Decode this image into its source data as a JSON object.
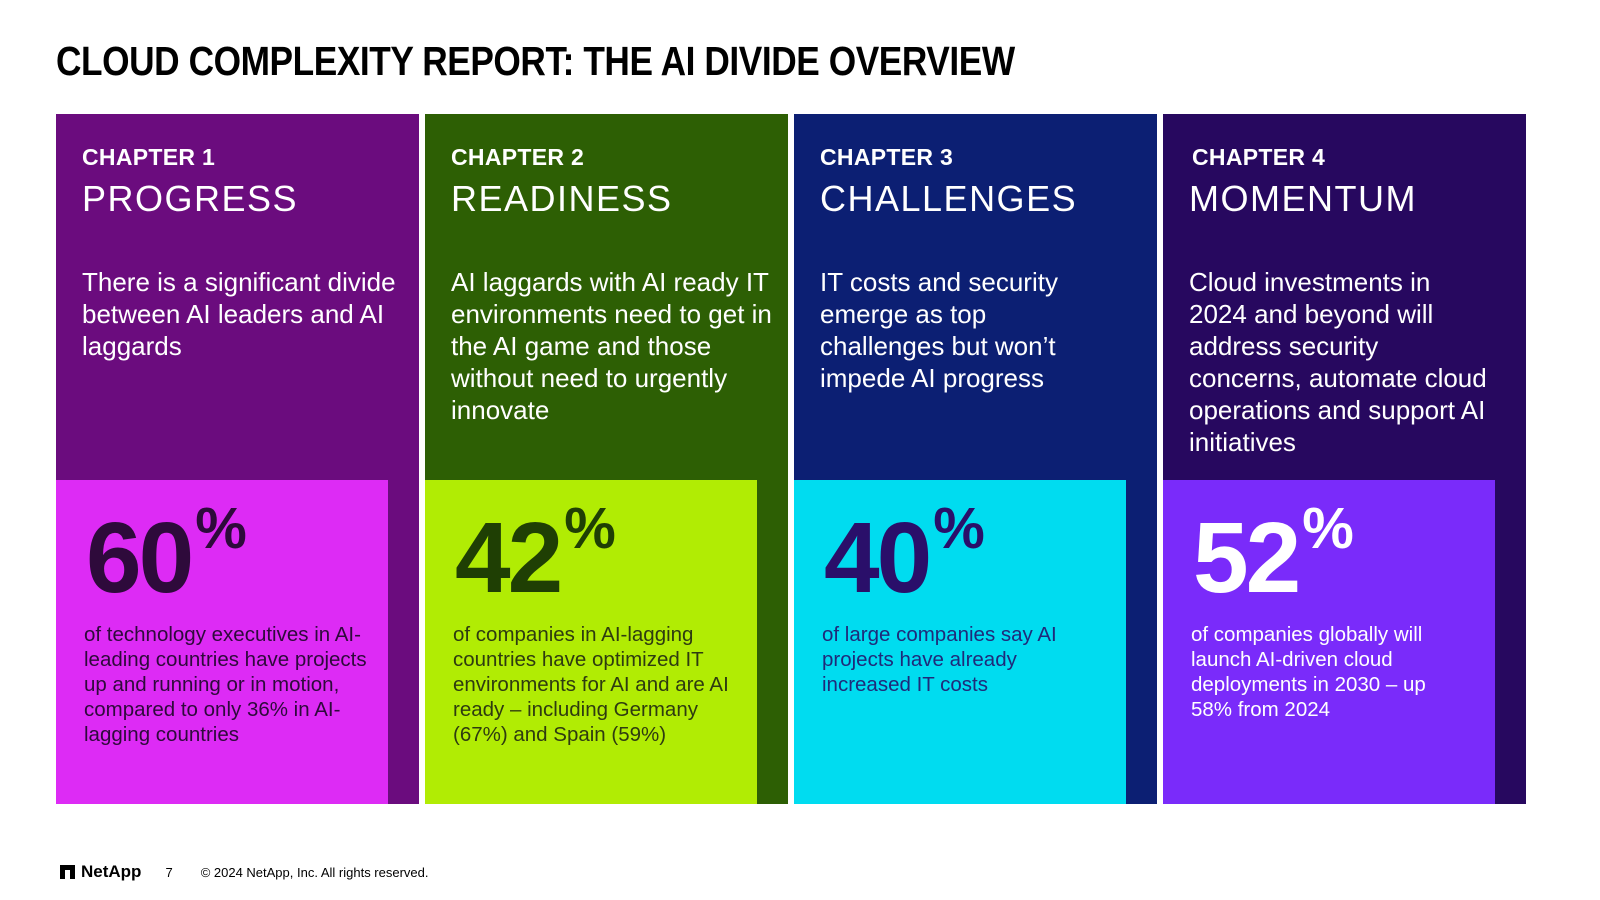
{
  "title": "CLOUD COMPLEXITY REPORT: THE AI DIVIDE OVERVIEW",
  "chapters": [
    {
      "chapter": "CHAPTER 1",
      "name": "PROGRESS",
      "description": "There is a significant divide between AI leaders and AI laggards",
      "stat_value": "60",
      "stat_unit": "%",
      "stat_text": "of technology executives in AI-leading countries have projects up and running or in motion, compared to only 36% in AI-lagging countries",
      "colors": {
        "panel": "#6B0C7E",
        "stat_box": "#DD2BF5",
        "stat_value": "#2E0A3B",
        "stat_text": "#2E0A3B"
      }
    },
    {
      "chapter": "CHAPTER 2",
      "name": "READINESS",
      "description": "AI laggards with AI ready IT environments need to get in the AI game and those without need to urgently innovate",
      "stat_value": "42",
      "stat_unit": "%",
      "stat_text": "of companies in AI-lagging countries have optimized IT environments for AI and are AI ready – including Germany (67%) and Spain (59%)",
      "colors": {
        "panel": "#2D5F04",
        "stat_box": "#B1EC04",
        "stat_value": "#1F3F04",
        "stat_text": "#2E3B10"
      }
    },
    {
      "chapter": "CHAPTER 3",
      "name": "CHALLENGES",
      "description": "IT costs and security emerge as top challenges but won’t impede AI progress",
      "stat_value": "40",
      "stat_unit": "%",
      "stat_text": "of large companies say AI projects have already increased IT costs",
      "colors": {
        "panel": "#0C1F73",
        "stat_box": "#00DCF0",
        "stat_value": "#2A0F6A",
        "stat_text": "#1F2A7A"
      }
    },
    {
      "chapter": "CHAPTER 4",
      "name": "MOMENTUM",
      "description": "Cloud investments in 2024 and beyond will address security concerns, automate cloud operations and support AI initiatives",
      "stat_value": "52",
      "stat_unit": "%",
      "stat_text": "of companies globally  will launch AI-driven cloud deployments in 2030 – up 58% from 2024",
      "colors": {
        "panel": "#27085F",
        "stat_box": "#7A2BFA",
        "stat_value": "#FFFFFF",
        "stat_text": "#FFFFFF"
      }
    }
  ],
  "footer": {
    "logo_text": "NetApp",
    "page_number": "7",
    "copyright": "© 2024 NetApp, Inc. All rights reserved."
  }
}
